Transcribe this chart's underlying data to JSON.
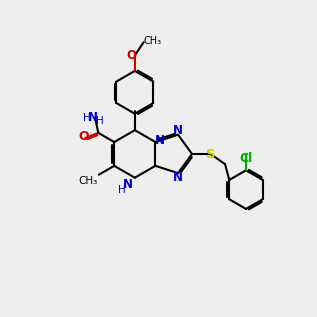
{
  "bg_color": "#eeeeee",
  "bond_color": "#000000",
  "n_color": "#0000cc",
  "o_color": "#cc0000",
  "s_color": "#cccc00",
  "cl_color": "#00aa00",
  "lw": 1.5,
  "dbo": 0.06,
  "fs": 8.5
}
